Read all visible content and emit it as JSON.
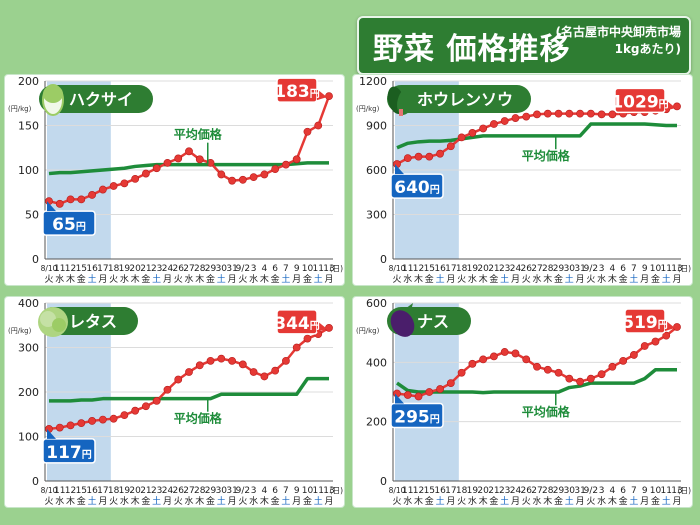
{
  "header": {
    "title": "野菜 価格推移",
    "source_line1": "(名古屋市中央卸売市場",
    "source_line2": "1kgあたり)"
  },
  "axis_unit": "(円/kg)",
  "avg_label": "平均価格",
  "colors": {
    "price_line": "#e53935",
    "avg_line": "#1e8c3a",
    "highlight_band": "#b3cfe8",
    "start_badge": "#1565c0",
    "end_badge": "#e53935",
    "name_badge": "#2e7d32"
  },
  "chart_data": [
    {
      "id": "hakusai",
      "type": "line",
      "icon": "napa-cabbage-icon",
      "title": "ハクサイ",
      "ylabel": "(円/kg)",
      "ylim": [
        0,
        200
      ],
      "yticks": [
        0,
        50,
        100,
        150,
        200
      ],
      "start_label": {
        "value": "65",
        "unit": "円"
      },
      "end_label": {
        "value": "183",
        "unit": "円"
      },
      "avg_label_pos": "upper-middle",
      "series": [
        {
          "name": "price",
          "values": [
            65,
            62,
            67,
            67,
            72,
            78,
            82,
            85,
            90,
            96,
            102,
            108,
            113,
            121,
            112,
            108,
            95,
            88,
            89,
            92,
            95,
            101,
            106,
            112,
            143,
            150,
            183
          ]
        },
        {
          "name": "平均価格",
          "values": [
            96,
            97,
            97,
            98,
            99,
            100,
            101,
            102,
            104,
            105,
            106,
            106,
            106,
            106,
            106,
            106,
            106,
            106,
            106,
            106,
            106,
            106,
            106,
            107,
            108,
            108,
            108
          ]
        }
      ]
    },
    {
      "id": "horenso",
      "type": "line",
      "icon": "spinach-icon",
      "title": "ホウレンソウ",
      "ylabel": "(円/kg)",
      "ylim": [
        0,
        1200
      ],
      "yticks": [
        0,
        300,
        600,
        900,
        1200
      ],
      "start_label": {
        "value": "640",
        "unit": "円"
      },
      "end_label": {
        "value": "1029",
        "unit": "円"
      },
      "avg_label_pos": "middle",
      "series": [
        {
          "name": "price",
          "values": [
            640,
            680,
            690,
            690,
            710,
            760,
            820,
            850,
            880,
            910,
            930,
            950,
            960,
            975,
            980,
            980,
            980,
            980,
            980,
            975,
            975,
            980,
            990,
            990,
            1000,
            1010,
            1029
          ]
        },
        {
          "name": "平均価格",
          "values": [
            750,
            780,
            790,
            795,
            795,
            800,
            810,
            820,
            830,
            830,
            830,
            830,
            830,
            830,
            830,
            830,
            830,
            830,
            910,
            910,
            910,
            910,
            910,
            910,
            905,
            900,
            900
          ]
        }
      ]
    },
    {
      "id": "lettuce",
      "type": "line",
      "icon": "lettuce-icon",
      "title": "レタス",
      "ylabel": "(円/kg)",
      "ylim": [
        0,
        400
      ],
      "yticks": [
        0,
        100,
        200,
        300,
        400
      ],
      "start_label": {
        "value": "117",
        "unit": "円"
      },
      "end_label": {
        "value": "344",
        "unit": "円"
      },
      "avg_label_pos": "lower-middle",
      "series": [
        {
          "name": "price",
          "values": [
            117,
            120,
            125,
            130,
            135,
            138,
            140,
            148,
            158,
            168,
            180,
            205,
            228,
            245,
            260,
            270,
            275,
            270,
            262,
            245,
            235,
            248,
            270,
            300,
            320,
            330,
            344
          ]
        },
        {
          "name": "平均価格",
          "values": [
            180,
            180,
            180,
            182,
            182,
            185,
            185,
            185,
            185,
            185,
            185,
            185,
            185,
            185,
            185,
            185,
            195,
            195,
            195,
            195,
            195,
            195,
            195,
            195,
            230,
            230,
            230
          ]
        }
      ]
    },
    {
      "id": "nasu",
      "type": "line",
      "icon": "eggplant-icon",
      "title": "ナス",
      "ylabel": "(円/kg)",
      "ylim": [
        0,
        600
      ],
      "yticks": [
        0,
        200,
        400,
        600
      ],
      "start_label": {
        "value": "295",
        "unit": "円"
      },
      "end_label": {
        "value": "519",
        "unit": "円"
      },
      "avg_label_pos": "lower-middle",
      "series": [
        {
          "name": "price",
          "values": [
            295,
            290,
            285,
            300,
            310,
            330,
            365,
            395,
            410,
            420,
            435,
            430,
            410,
            385,
            375,
            365,
            345,
            335,
            345,
            360,
            385,
            405,
            425,
            455,
            470,
            490,
            519
          ]
        },
        {
          "name": "平均価格",
          "values": [
            330,
            305,
            300,
            300,
            300,
            300,
            300,
            300,
            298,
            300,
            300,
            300,
            300,
            300,
            300,
            300,
            315,
            320,
            330,
            330,
            330,
            330,
            330,
            345,
            375,
            375,
            375
          ]
        }
      ]
    }
  ],
  "x_dates": [
    "8/10",
    "11",
    "12",
    "15",
    "16",
    "17",
    "18",
    "19",
    "20",
    "21",
    "23",
    "24",
    "26",
    "27",
    "28",
    "29",
    "30",
    "31",
    "9/2",
    "3",
    "4",
    "6",
    "7",
    "9",
    "10",
    "11",
    "13"
  ],
  "x_days": [
    "火",
    "水",
    "木",
    "金",
    "土",
    "月",
    "火",
    "水",
    "木",
    "金",
    "土",
    "月",
    "火",
    "水",
    "木",
    "金",
    "土",
    "月",
    "火",
    "水",
    "木",
    "金",
    "土",
    "月",
    "金",
    "土",
    "月"
  ],
  "x_days_accent": "#1565c0",
  "x_end_note": "(日)"
}
